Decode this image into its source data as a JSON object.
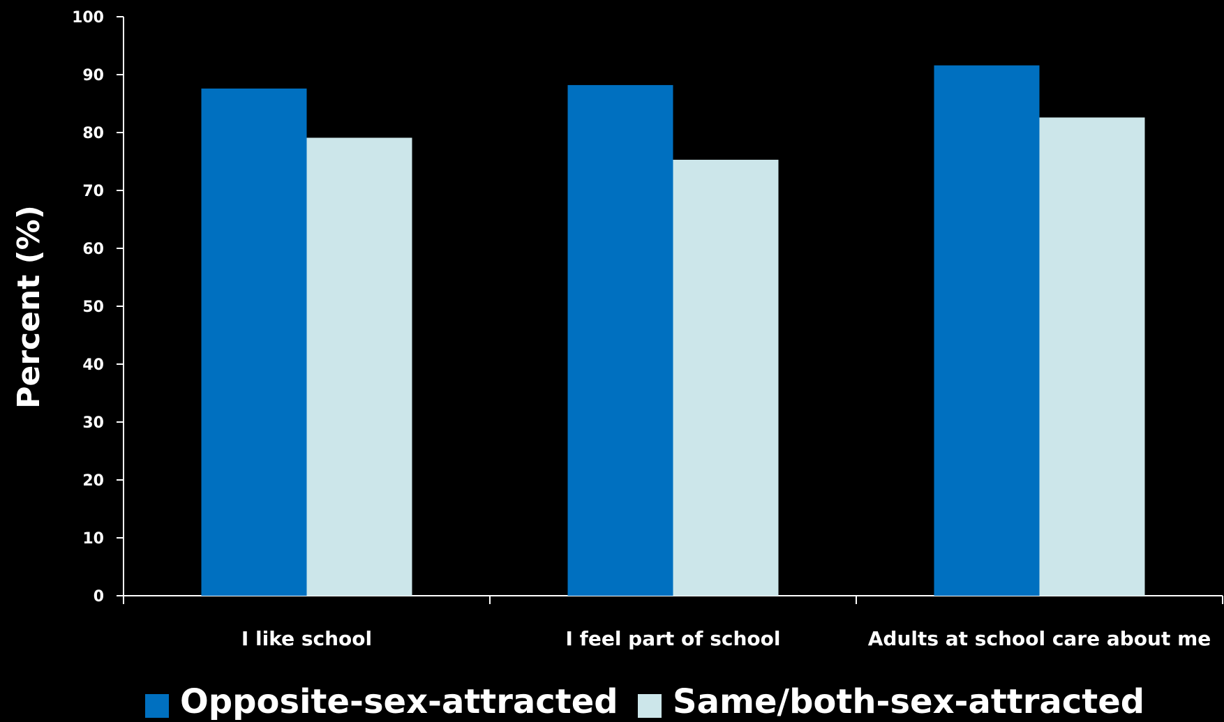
{
  "chart_data": {
    "type": "bar",
    "title": "",
    "xlabel": "",
    "ylabel": "Percent (%)",
    "ylim": [
      0,
      100
    ],
    "yticks": [
      0,
      10,
      20,
      30,
      40,
      50,
      60,
      70,
      80,
      90,
      100
    ],
    "categories": [
      "I like school",
      "I feel part of school",
      "Adults at school care about me"
    ],
    "series": [
      {
        "name": "Opposite-sex-attracted",
        "color": "#0070C0",
        "values": [
          87.6,
          88.2,
          91.6
        ]
      },
      {
        "name": "Same/both-sex-attracted",
        "color": "#CCE6EA",
        "values": [
          79.1,
          75.3,
          82.6
        ]
      }
    ],
    "grid": false,
    "legend_position": "bottom",
    "axis_color": "#ffffff",
    "background": "#000000"
  }
}
